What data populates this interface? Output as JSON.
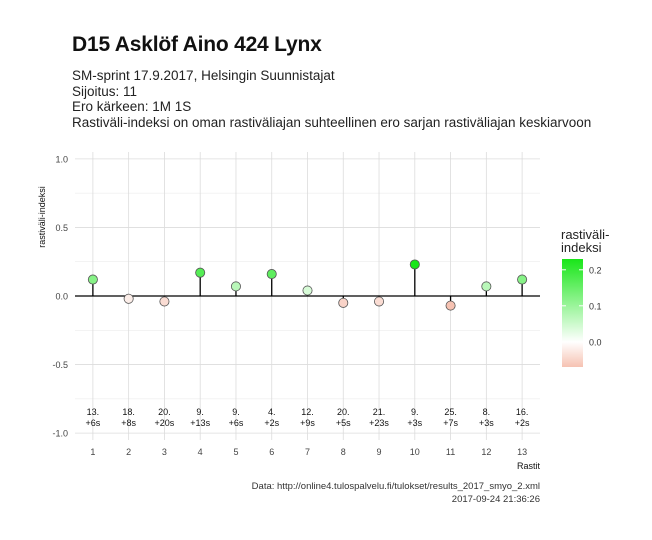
{
  "chart_data": {
    "type": "scatter",
    "title": "D15 Asklöf Aino 424 Lynx",
    "subtitle_lines": [
      "SM-sprint 17.9.2017, Helsingin Suunnistajat",
      "Sijoitus: 11",
      "Ero kärkeen: 1M 1S",
      "Rastiväli-indeksi on oman rastiväliajan suhteellinen ero sarjan rastiväliajan keskiarvoon"
    ],
    "xlabel": "Rastit",
    "ylabel": "rastiväli-indeksi",
    "ylim": [
      -1.05,
      1.05
    ],
    "y_ticks": [
      1.0,
      0.5,
      0.0,
      -0.5,
      -1.0
    ],
    "y_tick_labels": [
      "1.0",
      "0.5",
      "0.0",
      "-0.5",
      "-1.0"
    ],
    "x_ticks": [
      1,
      2,
      3,
      4,
      5,
      6,
      7,
      8,
      9,
      10,
      11,
      12,
      13
    ],
    "grid": true,
    "x": [
      1,
      2,
      3,
      4,
      5,
      6,
      7,
      8,
      9,
      10,
      11,
      12,
      13
    ],
    "values": [
      0.12,
      -0.02,
      -0.04,
      0.17,
      0.07,
      0.16,
      0.04,
      -0.05,
      -0.04,
      0.23,
      -0.07,
      0.07,
      0.12
    ],
    "point_labels": [
      [
        "13.",
        "+6s"
      ],
      [
        "18.",
        "+8s"
      ],
      [
        "20.",
        "+20s"
      ],
      [
        "9.",
        "+13s"
      ],
      [
        "9.",
        "+6s"
      ],
      [
        "4.",
        "+2s"
      ],
      [
        "12.",
        "+9s"
      ],
      [
        "20.",
        "+5s"
      ],
      [
        "21.",
        "+23s"
      ],
      [
        "9.",
        "+3s"
      ],
      [
        "25.",
        "+7s"
      ],
      [
        "8.",
        "+3s"
      ],
      [
        "16.",
        "+2s"
      ]
    ],
    "legend": {
      "title_lines": [
        "rastiväli-",
        "indeksi"
      ],
      "placement": "right",
      "tick_values": [
        0.2,
        0.1,
        0.0
      ],
      "tick_labels": [
        "0.2",
        "0.1",
        "0.0"
      ],
      "range": [
        -0.07,
        0.23
      ],
      "colors": {
        "low": "#f6c2b2",
        "mid": "#ffffff",
        "high": "#19e619"
      }
    },
    "caption_lines": [
      "Data: http://online4.tulospalvelu.fi/tulokset/results_2017_smyo_2.xml",
      "2017-09-24 21:36:26"
    ]
  }
}
